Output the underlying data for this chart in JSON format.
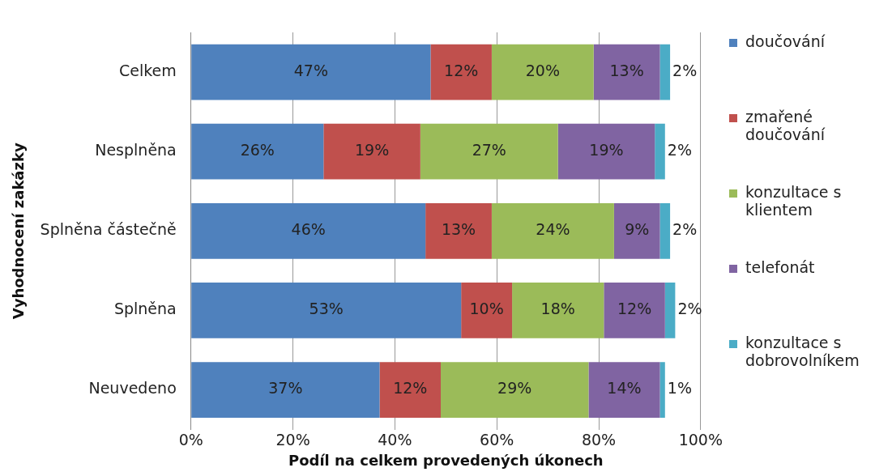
{
  "chart_data": {
    "type": "bar",
    "orientation": "horizontal",
    "stacked": true,
    "xlabel": "Podíl na celkem provedených úkonech",
    "ylabel": "Vyhodnocení zakázky",
    "categories": [
      "Celkem",
      "Nesplněna",
      "Splněna částečně",
      "Splněna",
      "Neuvedeno"
    ],
    "series": [
      {
        "name": "doučování",
        "color": "#4f81bd",
        "values": [
          47,
          26,
          46,
          53,
          37
        ],
        "value_labels": [
          "47%",
          "26%",
          "46%",
          "53%",
          "37%"
        ]
      },
      {
        "name": "zmařené doučování",
        "color": "#c0504d",
        "values": [
          12,
          19,
          13,
          10,
          12
        ],
        "value_labels": [
          "12%",
          "19%",
          "13%",
          "10%",
          "12%"
        ]
      },
      {
        "name": "konzultace s klientem",
        "color": "#9bbb59",
        "values": [
          20,
          27,
          24,
          18,
          29
        ],
        "value_labels": [
          "20%",
          "27%",
          "24%",
          "18%",
          "29%"
        ]
      },
      {
        "name": "telefonát",
        "color": "#8064a2",
        "values": [
          13,
          19,
          9,
          12,
          14
        ],
        "value_labels": [
          "13%",
          "19%",
          "9%",
          "12%",
          "14%"
        ]
      },
      {
        "name": "konzultace s dobrovolníkem",
        "color": "#4bacc6",
        "values": [
          2,
          2,
          2,
          2,
          1
        ],
        "value_labels": [
          "2%",
          "2%",
          "2%",
          "2%",
          "1%"
        ]
      }
    ],
    "xlim": [
      0,
      100
    ],
    "xticks": [
      {
        "value": 0,
        "label": "0%"
      },
      {
        "value": 20,
        "label": "20%"
      },
      {
        "value": 40,
        "label": "40%"
      },
      {
        "value": 60,
        "label": "60%"
      },
      {
        "value": 80,
        "label": "80%"
      },
      {
        "value": 100,
        "label": "100%"
      }
    ],
    "grid": "x",
    "legend": "right"
  }
}
